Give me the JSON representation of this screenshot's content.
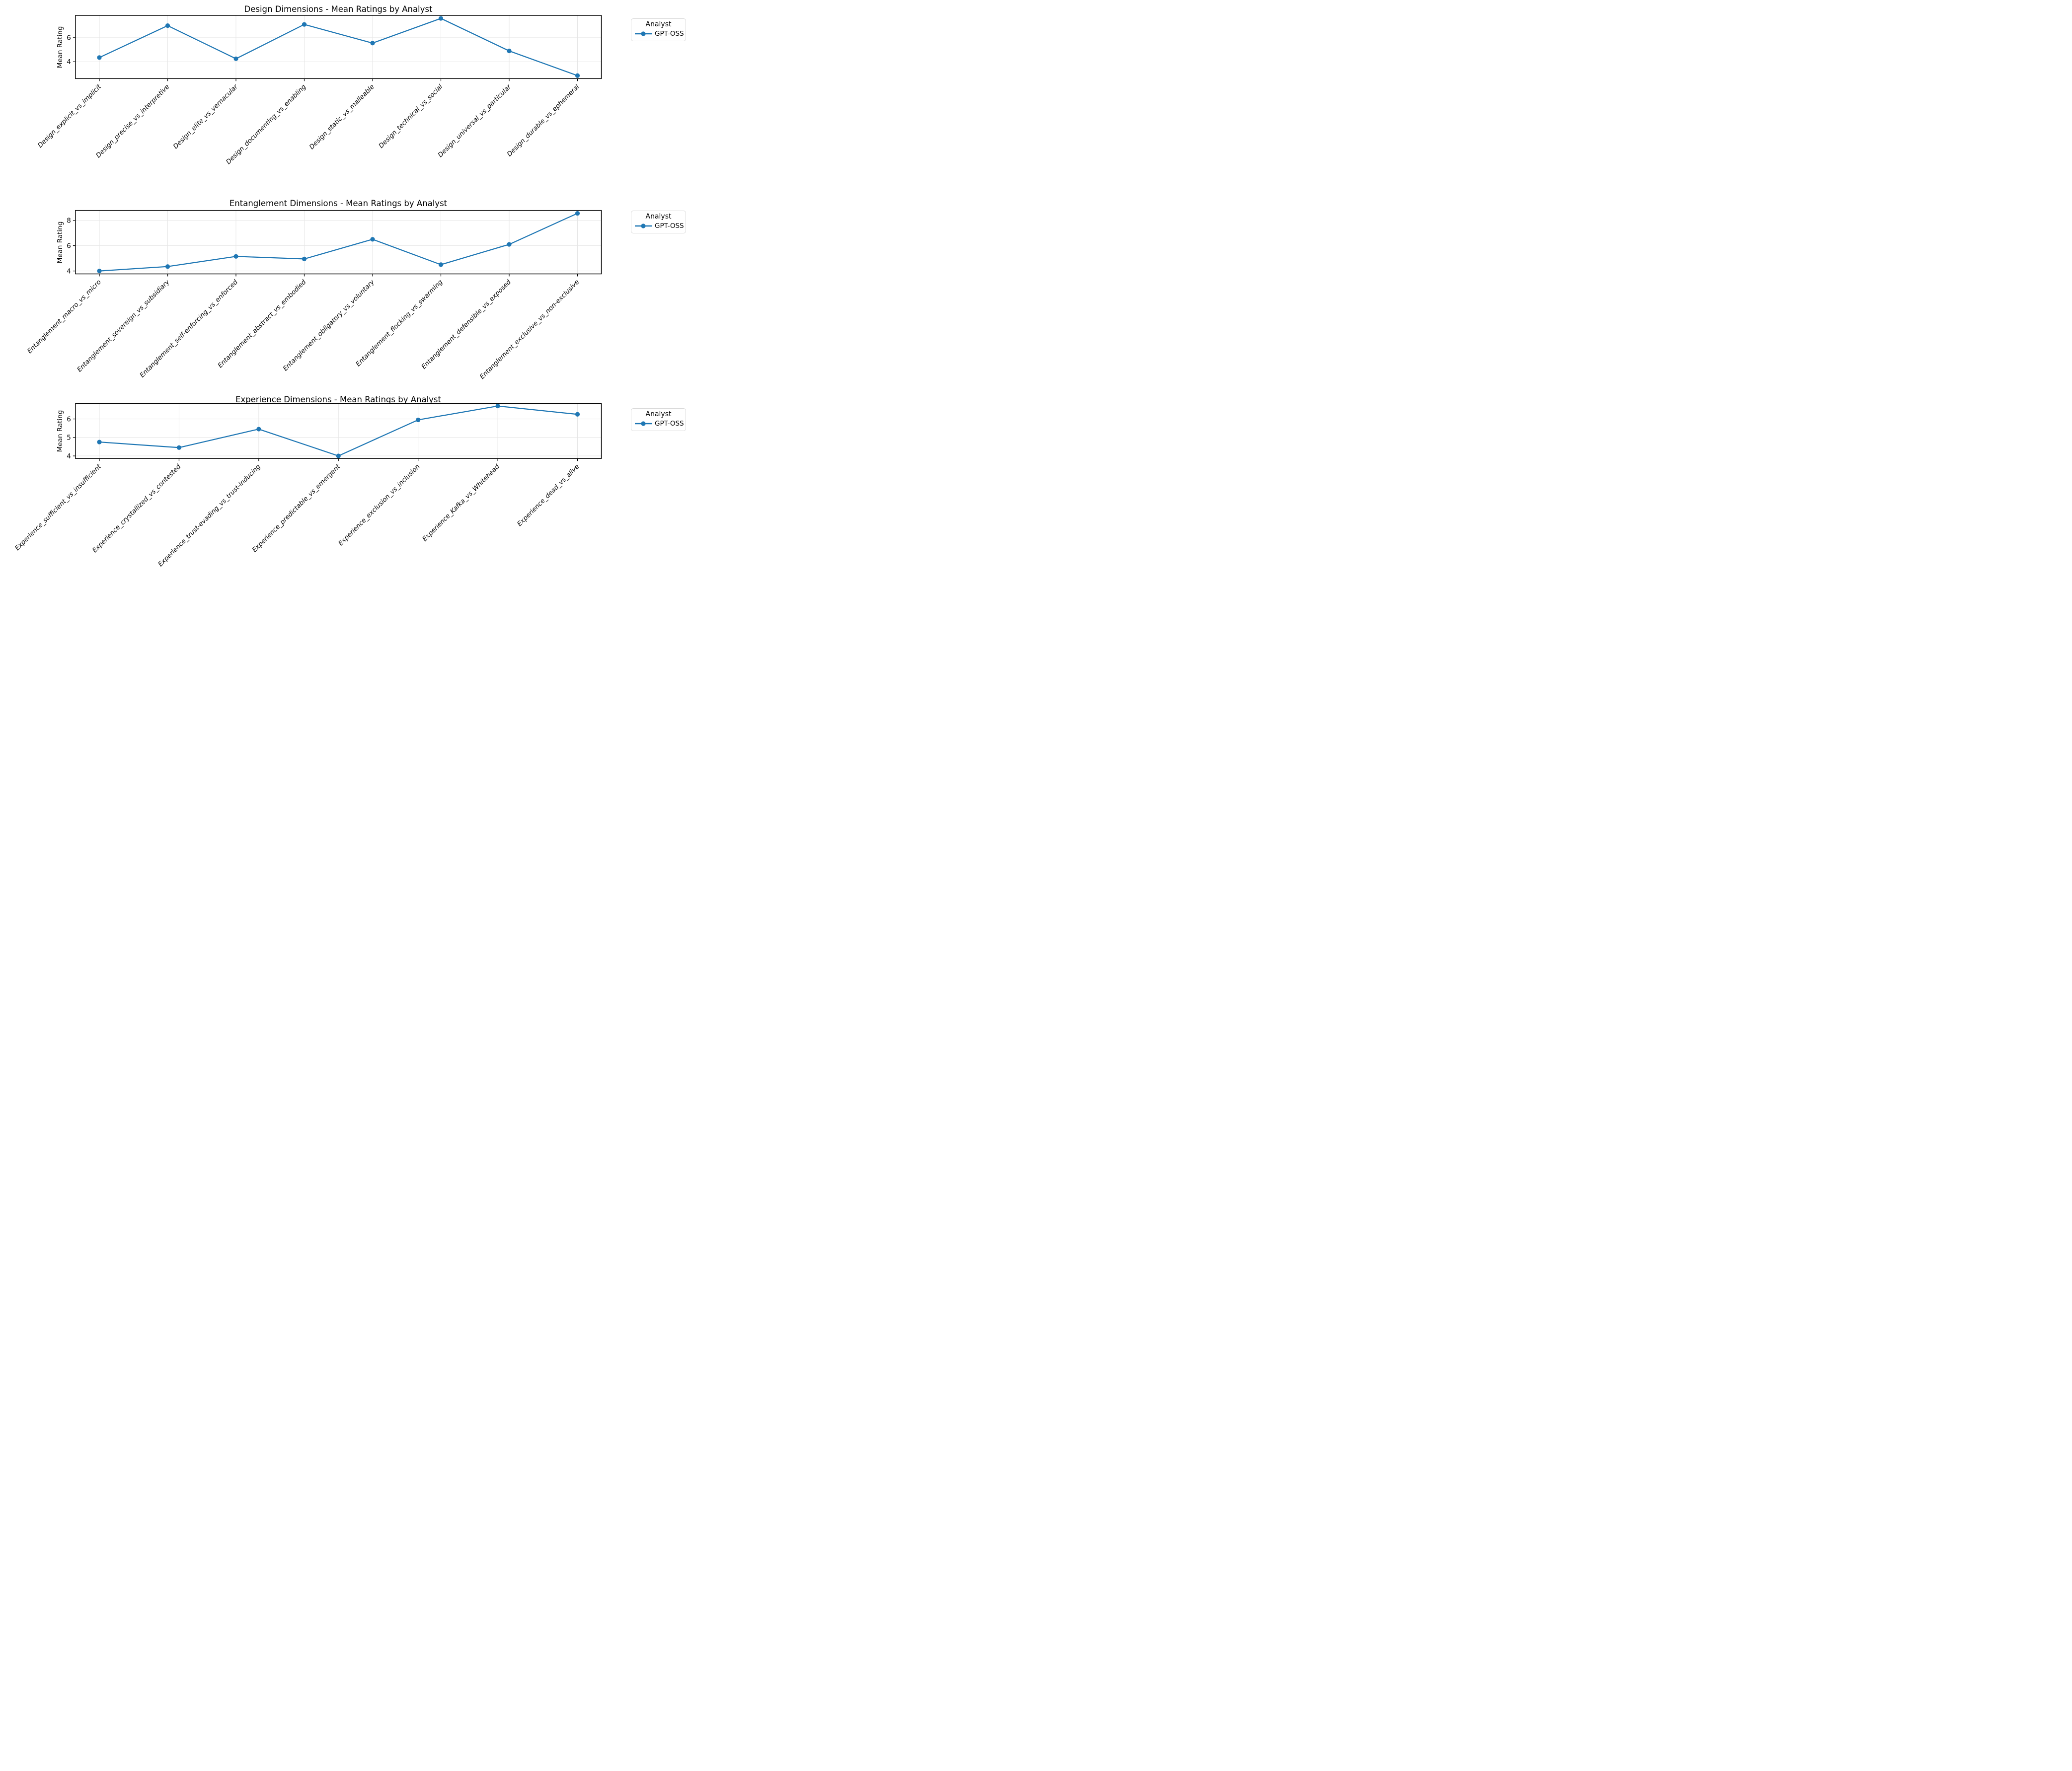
{
  "figure": {
    "kind": "matplotlib-style line charts, 3 stacked subplots",
    "background": "#ffffff"
  },
  "colors": {
    "series": "#1f77b4",
    "grid": "#e6e6e6",
    "spine": "#000000",
    "legend_border": "#d9d9d9",
    "text": "#000000"
  },
  "chart_data": [
    {
      "type": "line",
      "title": "Design Dimensions - Mean Ratings by Analyst",
      "xlabel": "",
      "ylabel": "Mean Rating",
      "legend_title": "Analyst",
      "legend_position": "outside right, top",
      "grid": true,
      "yticks": [
        4,
        6
      ],
      "ylim": [
        2.6,
        7.85
      ],
      "categories": [
        "Design_explicit_vs_implicit",
        "Design_precise_vs_interpretive",
        "Design_elite_vs_vernacular",
        "Design_documenting_vs_enabling",
        "Design_static_vs_malleable",
        "Design_technical_vs_social",
        "Design_universal_vs_particular",
        "Design_durable_vs_ephemeral"
      ],
      "series": [
        {
          "name": "GPT-OSS",
          "values": [
            4.35,
            7.0,
            4.25,
            7.1,
            5.55,
            7.6,
            4.9,
            2.85
          ]
        }
      ]
    },
    {
      "type": "line",
      "title": "Entanglement Dimensions - Mean Ratings by Analyst",
      "xlabel": "",
      "ylabel": "Mean Rating",
      "legend_title": "Analyst",
      "legend_position": "outside right, top",
      "grid": true,
      "yticks": [
        4,
        6,
        8
      ],
      "ylim": [
        3.77,
        8.78
      ],
      "categories": [
        "Entanglement_macro_vs_micro",
        "Entanglement_sovereign_vs_subsidiary",
        "Entanglement_self-enforcing_vs_enforced",
        "Entanglement_abstract_vs_embodied",
        "Entanglement_obligatory_vs_voluntary",
        "Entanglement_flocking_vs_swarming",
        "Entanglement_defensible_vs_exposed",
        "Entanglement_exclusive_vs_non-exclusive"
      ],
      "series": [
        {
          "name": "GPT-OSS",
          "values": [
            4.0,
            4.35,
            5.15,
            4.95,
            6.5,
            4.5,
            6.1,
            8.55
          ]
        }
      ]
    },
    {
      "type": "line",
      "title": "Experience Dimensions - Mean Ratings by Analyst",
      "xlabel": "",
      "ylabel": "Mean Rating",
      "legend_title": "Analyst",
      "legend_position": "outside right, top",
      "grid": true,
      "yticks": [
        4,
        5,
        6
      ],
      "ylim": [
        3.86,
        6.83
      ],
      "categories": [
        "Experience_sufficient_vs_insufficient",
        "Experience_crystallized_vs_contested",
        "Experience_trust-evading_vs_trust-inducing",
        "Experience_predictable_vs_emergent",
        "Experience_exclusion_vs_inclusion",
        "Experience_Kafka_vs_Whitehead",
        "Experience_dead_vs_alive"
      ],
      "series": [
        {
          "name": "GPT-OSS",
          "values": [
            4.75,
            4.45,
            5.45,
            4.0,
            5.95,
            6.7,
            6.25
          ]
        }
      ]
    }
  ]
}
